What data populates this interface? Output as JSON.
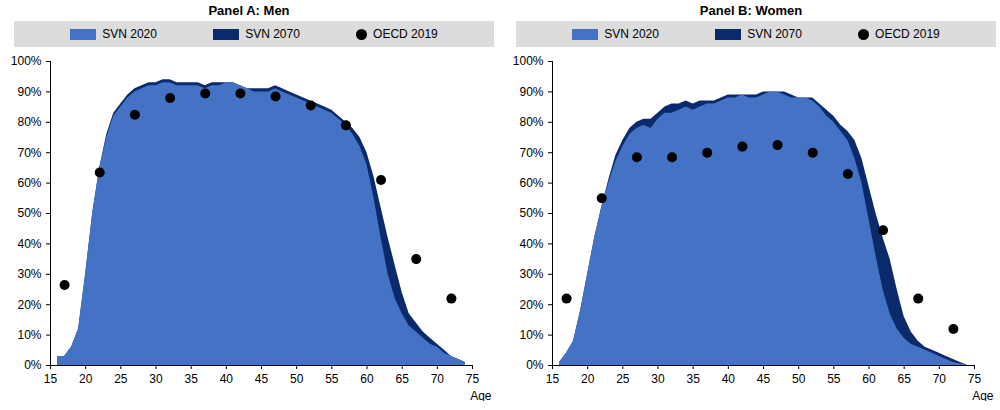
{
  "chart_data": [
    {
      "type": "area",
      "title": "Panel A: Men",
      "xlabel": "Age",
      "xlim": [
        15,
        75
      ],
      "xticks": [
        15,
        20,
        25,
        30,
        35,
        40,
        45,
        50,
        55,
        60,
        65,
        70,
        75
      ],
      "ylim": [
        0,
        100
      ],
      "yticks": [
        {
          "value": 0,
          "label": "0%"
        },
        {
          "value": 10,
          "label": "10%"
        },
        {
          "value": 20,
          "label": "20%"
        },
        {
          "value": 30,
          "label": "30%"
        },
        {
          "value": 40,
          "label": "40%"
        },
        {
          "value": 50,
          "label": "50%"
        },
        {
          "value": 60,
          "label": "60%"
        },
        {
          "value": 70,
          "label": "70%"
        },
        {
          "value": 80,
          "label": "80%"
        },
        {
          "value": 90,
          "label": "90%"
        },
        {
          "value": 100,
          "label": "100%"
        }
      ],
      "grid": false,
      "legend": "top",
      "x": [
        16,
        17,
        18,
        19,
        20,
        21,
        22,
        23,
        24,
        25,
        26,
        27,
        28,
        29,
        30,
        31,
        32,
        33,
        34,
        35,
        36,
        37,
        38,
        39,
        40,
        41,
        42,
        43,
        44,
        45,
        46,
        47,
        48,
        49,
        50,
        51,
        52,
        53,
        54,
        55,
        56,
        57,
        58,
        59,
        60,
        61,
        62,
        63,
        64,
        65,
        66,
        67,
        68,
        69,
        70,
        71,
        72,
        73,
        74
      ],
      "series": [
        {
          "name": "SVN 2020",
          "type": "area",
          "color": "#4472c4",
          "values": [
            3,
            3,
            6,
            12,
            30,
            50,
            65,
            75,
            82,
            85,
            88,
            90,
            91,
            92,
            92,
            93,
            93,
            92,
            92,
            92,
            92,
            91,
            92,
            92,
            93,
            93,
            92,
            91,
            90,
            90,
            90,
            91,
            90,
            89,
            88,
            87,
            86,
            85,
            84,
            83,
            81,
            79,
            76,
            72,
            66,
            55,
            42,
            30,
            22,
            17,
            13,
            11,
            9,
            7,
            6,
            4,
            3,
            2,
            1
          ]
        },
        {
          "name": "SVN 2070",
          "type": "area",
          "color": "#0b2a6b",
          "values": [
            3,
            3,
            6,
            12,
            30,
            50,
            65,
            76,
            83,
            86,
            89,
            91,
            92,
            93,
            93,
            94,
            94,
            93,
            93,
            93,
            93,
            92,
            93,
            93,
            93,
            93,
            92,
            91,
            91,
            91,
            91,
            92,
            91,
            90,
            89,
            88,
            87,
            86,
            85,
            84,
            82,
            80,
            78,
            75,
            70,
            62,
            52,
            42,
            33,
            24,
            17,
            14,
            11,
            9,
            7,
            5,
            3,
            2,
            1
          ]
        },
        {
          "name": "OECD 2019",
          "type": "scatter",
          "marker": "circle",
          "color": "#000000",
          "x": [
            17,
            22,
            27,
            32,
            37,
            42,
            47,
            52,
            57,
            62,
            67,
            72
          ],
          "values": [
            26.5,
            63.5,
            82.5,
            88,
            89.5,
            89.5,
            88.5,
            85.5,
            79,
            61,
            35,
            22
          ]
        }
      ]
    },
    {
      "type": "area",
      "title": "Panel B: Women",
      "xlabel": "Age",
      "xlim": [
        15,
        75
      ],
      "xticks": [
        15,
        20,
        25,
        30,
        35,
        40,
        45,
        50,
        55,
        60,
        65,
        70,
        75
      ],
      "ylim": [
        0,
        100
      ],
      "yticks": [
        {
          "value": 0,
          "label": "0%"
        },
        {
          "value": 10,
          "label": "10%"
        },
        {
          "value": 20,
          "label": "20%"
        },
        {
          "value": 30,
          "label": "30%"
        },
        {
          "value": 40,
          "label": "40%"
        },
        {
          "value": 50,
          "label": "50%"
        },
        {
          "value": 60,
          "label": "60%"
        },
        {
          "value": 70,
          "label": "70%"
        },
        {
          "value": 80,
          "label": "80%"
        },
        {
          "value": 90,
          "label": "90%"
        },
        {
          "value": 100,
          "label": "100%"
        }
      ],
      "grid": false,
      "legend": "top",
      "x": [
        16,
        17,
        18,
        19,
        20,
        21,
        22,
        23,
        24,
        25,
        26,
        27,
        28,
        29,
        30,
        31,
        32,
        33,
        34,
        35,
        36,
        37,
        38,
        39,
        40,
        41,
        42,
        43,
        44,
        45,
        46,
        47,
        48,
        49,
        50,
        51,
        52,
        53,
        54,
        55,
        56,
        57,
        58,
        59,
        60,
        61,
        62,
        63,
        64,
        65,
        66,
        67,
        68,
        69,
        70,
        71,
        72,
        73,
        74
      ],
      "series": [
        {
          "name": "SVN 2020",
          "type": "area",
          "color": "#4472c4",
          "values": [
            1,
            4,
            8,
            18,
            30,
            42,
            52,
            60,
            67,
            72,
            76,
            78,
            79,
            78,
            81,
            83,
            83,
            84,
            85,
            84,
            85,
            86,
            86,
            87,
            88,
            88,
            89,
            88,
            88,
            89,
            90,
            90,
            89,
            88,
            88,
            88,
            87,
            85,
            82,
            80,
            77,
            74,
            68,
            60,
            48,
            36,
            25,
            17,
            12,
            9,
            7,
            6,
            5,
            4,
            3,
            2,
            1,
            0.5,
            0
          ]
        },
        {
          "name": "SVN 2070",
          "type": "area",
          "color": "#0b2a6b",
          "values": [
            1,
            4,
            8,
            18,
            30,
            42,
            52,
            61,
            69,
            74,
            78,
            80,
            81,
            81,
            83,
            85,
            86,
            86,
            87,
            86,
            87,
            87,
            87,
            88,
            89,
            89,
            89,
            89,
            89,
            90,
            90,
            90,
            90,
            89,
            88,
            88,
            88,
            86,
            84,
            82,
            79,
            77,
            74,
            68,
            59,
            50,
            42,
            35,
            25,
            16,
            11,
            8,
            6,
            5,
            4,
            3,
            2,
            1,
            0
          ]
        },
        {
          "name": "OECD 2019",
          "type": "scatter",
          "marker": "circle",
          "color": "#000000",
          "x": [
            17,
            22,
            27,
            32,
            37,
            42,
            47,
            52,
            57,
            62,
            67,
            72
          ],
          "values": [
            22,
            55,
            68.5,
            68.5,
            70,
            72,
            72.5,
            70,
            63,
            44.5,
            22,
            12
          ]
        }
      ]
    }
  ]
}
